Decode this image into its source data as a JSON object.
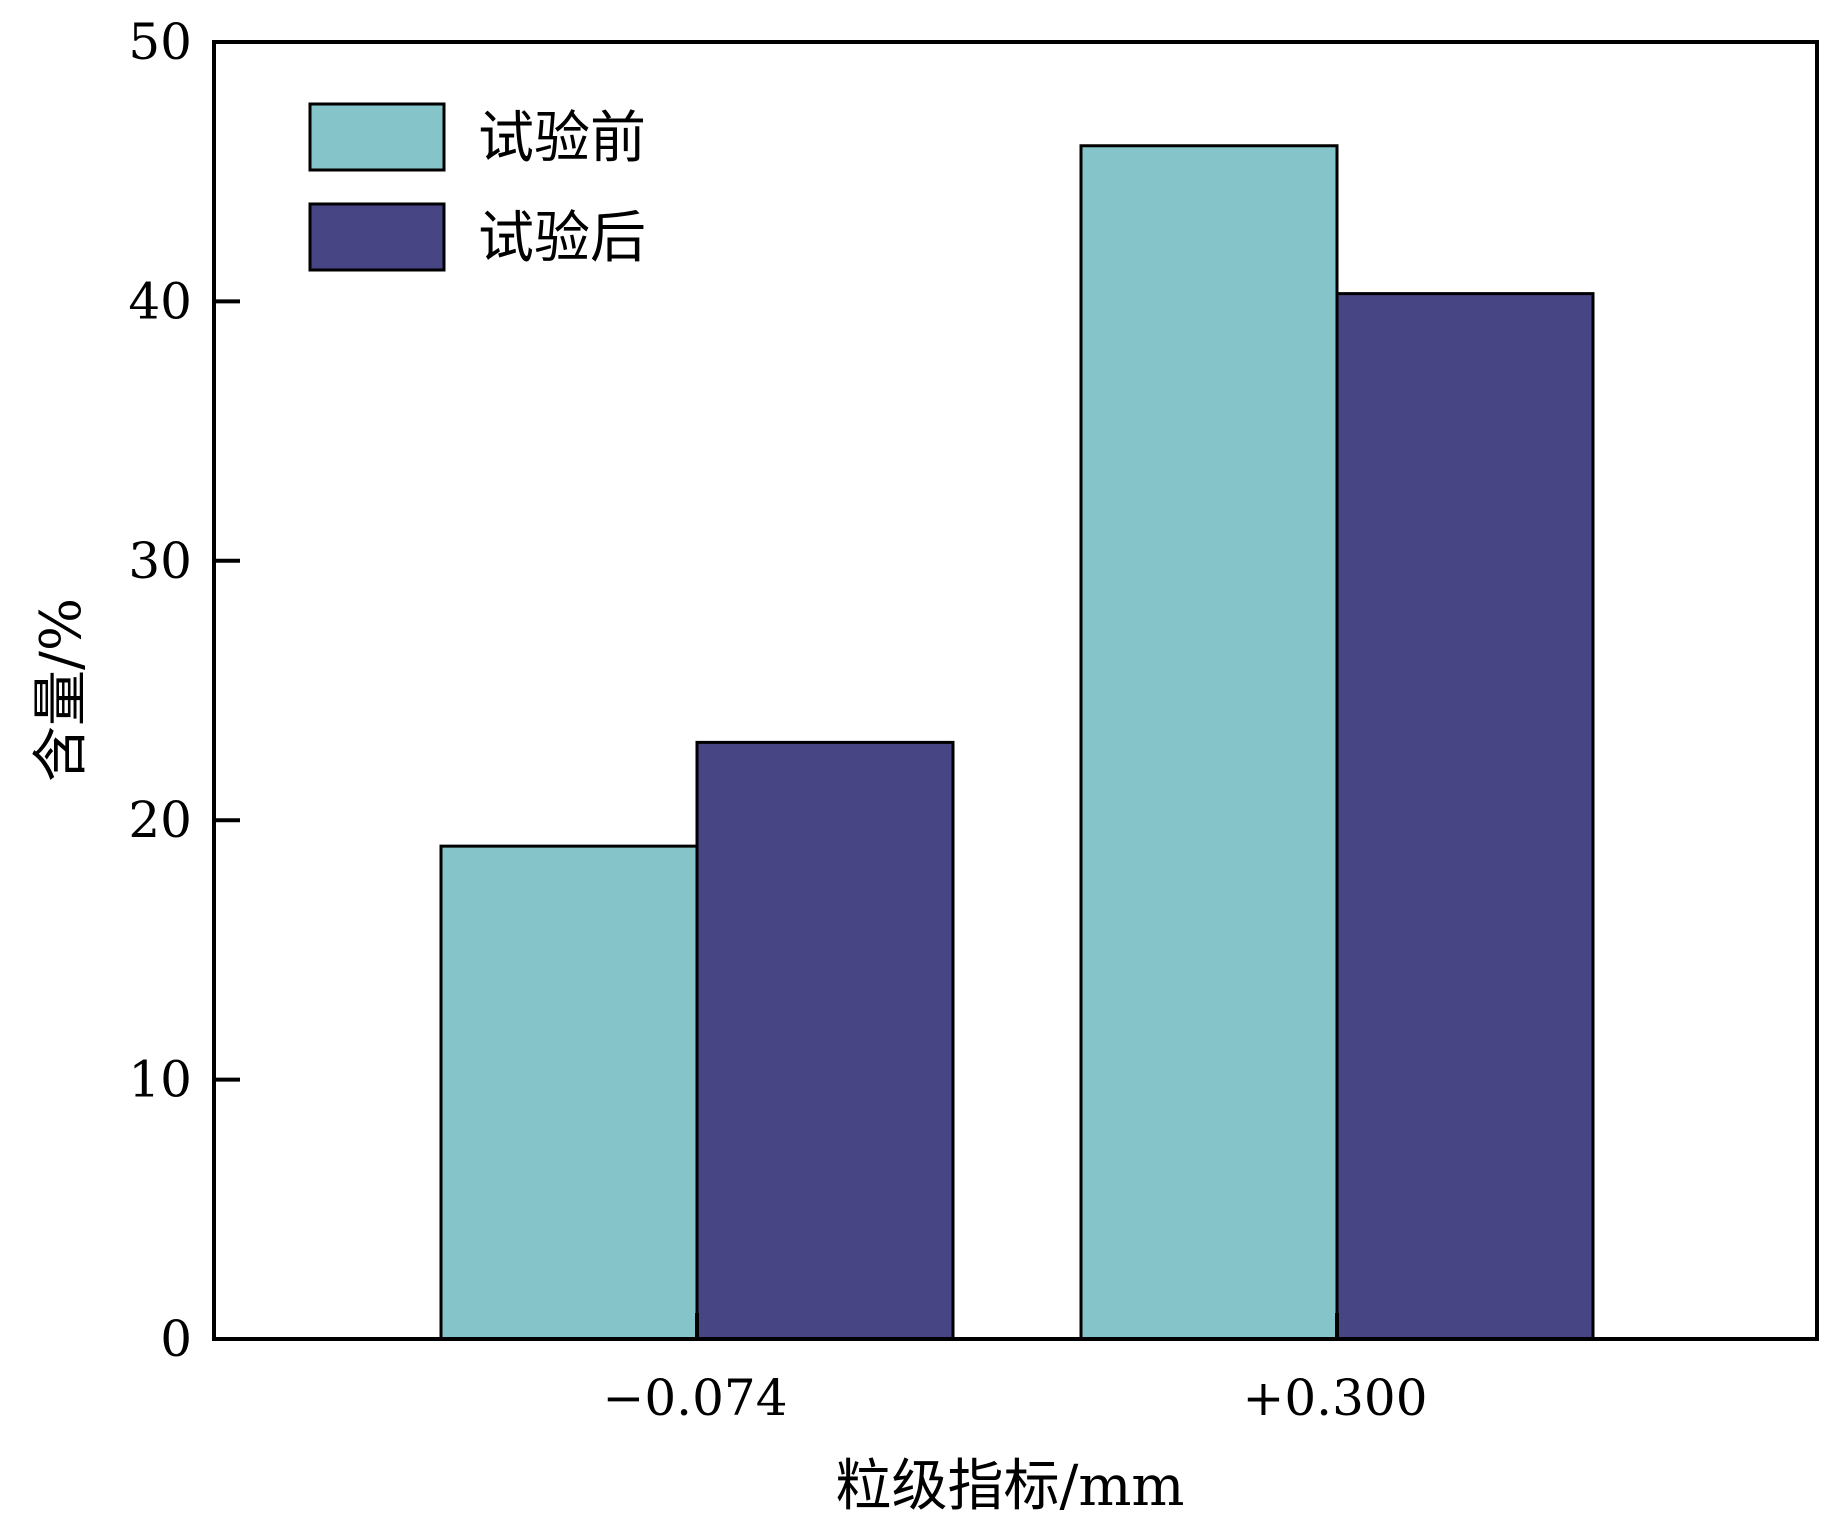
{
  "chart_data": {
    "type": "bar",
    "categories": [
      "−0.074",
      "+0.300"
    ],
    "series": [
      {
        "name": "试验前",
        "values": [
          19.0,
          46.0
        ],
        "color": "#85c5ca"
      },
      {
        "name": "试验后",
        "values": [
          23.0,
          40.3
        ],
        "color": "#484584"
      }
    ],
    "xlabel": "粒级指标/mm",
    "ylabel": "含量/%",
    "ylim": [
      0,
      50
    ],
    "yticks": [
      0,
      10,
      20,
      30,
      40,
      50
    ],
    "grid": false,
    "legend": "top-left"
  }
}
